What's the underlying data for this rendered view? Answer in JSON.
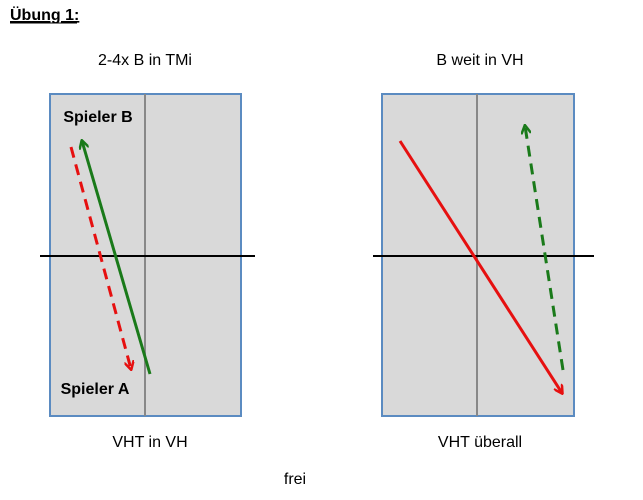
{
  "heading": "Übung 1:",
  "tables": [
    {
      "title": "2-4x B in TMi",
      "player_top": "Spieler B",
      "player_bottom": "Spieler A",
      "caption": "VHT in VH"
    },
    {
      "title": "B weit in VH",
      "caption": "VHT überall"
    }
  ],
  "footer": "frei"
}
